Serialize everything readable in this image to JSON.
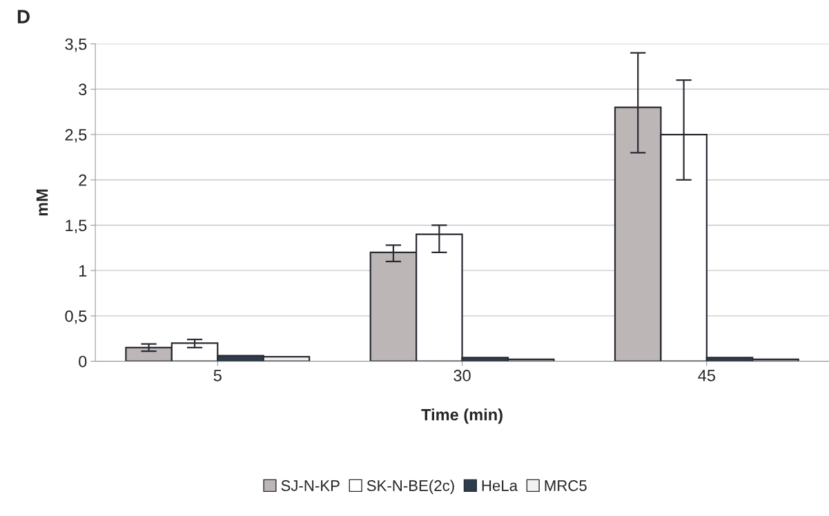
{
  "chart_data": {
    "type": "bar",
    "xlabel": "Time (min)",
    "ylabel": "mM",
    "categories": [
      "5",
      "30",
      "45"
    ],
    "series": [
      {
        "name": "SJ-N-KP",
        "color": "#bcb6b6",
        "values": [
          0.15,
          1.2,
          2.8
        ],
        "errors": [
          [
            0.11,
            0.19
          ],
          [
            1.1,
            1.28
          ],
          [
            2.3,
            3.4
          ]
        ]
      },
      {
        "name": "SK-N-BE(2c)",
        "color": "#ffffff",
        "values": [
          0.2,
          1.4,
          2.5
        ],
        "errors": [
          [
            0.15,
            0.24
          ],
          [
            1.2,
            1.5
          ],
          [
            2.0,
            3.1
          ]
        ]
      },
      {
        "name": "HeLa",
        "color": "#2e3d4d",
        "values": [
          0.06,
          0.04,
          0.04
        ]
      },
      {
        "name": "MRC5",
        "color": "#f2f2f2",
        "values": [
          0.05,
          0.02,
          0.02
        ]
      }
    ],
    "ylim": [
      0,
      3.5
    ],
    "yticks": [
      0,
      {
        "value": 0.5,
        "label": "0,5"
      },
      1,
      {
        "value": 1.5,
        "label": "1,5"
      },
      2,
      {
        "value": 2.5,
        "label": "2,5"
      },
      3,
      {
        "value": 3.5,
        "label": "3,5"
      }
    ],
    "grid": "y",
    "legend": "bottom",
    "annotations": [
      "D"
    ]
  }
}
